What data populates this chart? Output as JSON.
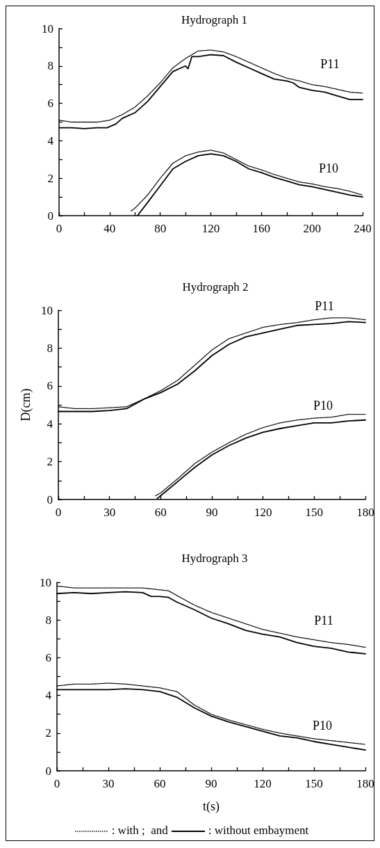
{
  "chart_data": [
    {
      "type": "line",
      "title": "Hydrograph 1",
      "xlim": [
        0,
        240
      ],
      "ylim": [
        0,
        10
      ],
      "xticks": [
        0,
        {
          "value": 20,
          "label": null
        },
        40,
        {
          "value": 60,
          "label": null
        },
        80,
        {
          "value": 100,
          "label": null
        },
        120,
        {
          "value": 140,
          "label": null
        },
        160,
        {
          "value": 180,
          "label": null
        },
        200,
        {
          "value": 220,
          "label": null
        },
        240
      ],
      "yticks": [
        0,
        {
          "value": 1,
          "label": null
        },
        2,
        {
          "value": 3,
          "label": null
        },
        4,
        {
          "value": 5,
          "label": null
        },
        6,
        {
          "value": 7,
          "label": null
        },
        8,
        {
          "value": 9,
          "label": null
        },
        10
      ],
      "grid": false,
      "marker": "none",
      "annotations": [
        "P11",
        "P10"
      ],
      "series": [
        {
          "color": "#000000",
          "line_style": "dotted",
          "x": [
            0,
            10,
            20,
            30,
            40,
            50,
            60,
            70,
            80,
            90,
            100,
            110,
            120,
            130,
            140,
            150,
            160,
            170,
            180,
            190,
            200,
            210,
            220,
            230,
            240
          ],
          "values": [
            5.1,
            5.0,
            5.0,
            5.0,
            5.1,
            5.4,
            5.8,
            6.4,
            7.1,
            7.9,
            8.4,
            8.8,
            8.85,
            8.75,
            8.5,
            8.2,
            7.9,
            7.6,
            7.35,
            7.2,
            7.0,
            6.9,
            6.75,
            6.6,
            6.55
          ]
        },
        {
          "color": "#000000",
          "line_style": "solid",
          "x": [
            0,
            10,
            20,
            30,
            38,
            45,
            50,
            60,
            70,
            80,
            90,
            100,
            102,
            105,
            110,
            120,
            130,
            140,
            150,
            160,
            170,
            180,
            185,
            190,
            200,
            210,
            220,
            230,
            240
          ],
          "values": [
            4.7,
            4.7,
            4.65,
            4.7,
            4.7,
            4.9,
            5.2,
            5.5,
            6.1,
            6.9,
            7.7,
            8.0,
            7.85,
            8.5,
            8.5,
            8.6,
            8.55,
            8.2,
            7.9,
            7.6,
            7.3,
            7.2,
            7.1,
            6.85,
            6.7,
            6.6,
            6.4,
            6.2,
            6.2
          ]
        },
        {
          "color": "#000000",
          "line_style": "dotted",
          "x": [
            57,
            60,
            70,
            80,
            90,
            100,
            110,
            120,
            130,
            140,
            150,
            160,
            170,
            180,
            190,
            200,
            210,
            220,
            230,
            240
          ],
          "values": [
            0.25,
            0.4,
            1.1,
            2.0,
            2.8,
            3.2,
            3.4,
            3.5,
            3.35,
            3.0,
            2.65,
            2.45,
            2.2,
            2.0,
            1.8,
            1.7,
            1.55,
            1.45,
            1.3,
            1.1
          ]
        },
        {
          "color": "#000000",
          "line_style": "solid",
          "x": [
            62,
            70,
            80,
            90,
            100,
            110,
            120,
            130,
            140,
            150,
            160,
            170,
            180,
            190,
            200,
            210,
            220,
            230,
            240
          ],
          "values": [
            0,
            0.7,
            1.6,
            2.5,
            2.9,
            3.2,
            3.3,
            3.2,
            2.9,
            2.5,
            2.3,
            2.05,
            1.85,
            1.65,
            1.55,
            1.4,
            1.25,
            1.1,
            1.0
          ]
        }
      ]
    },
    {
      "type": "line",
      "title": "Hydrograph 2",
      "ylabel": "D(cm)",
      "xlim": [
        0,
        180
      ],
      "ylim": [
        0,
        10
      ],
      "xticks": [
        0,
        {
          "value": 15,
          "label": null
        },
        30,
        {
          "value": 45,
          "label": null
        },
        60,
        {
          "value": 75,
          "label": null
        },
        90,
        {
          "value": 105,
          "label": null
        },
        120,
        {
          "value": 135,
          "label": null
        },
        150,
        {
          "value": 165,
          "label": null
        },
        180
      ],
      "yticks": [
        0,
        {
          "value": 1,
          "label": null
        },
        2,
        {
          "value": 3,
          "label": null
        },
        4,
        {
          "value": 5,
          "label": null
        },
        6,
        {
          "value": 7,
          "label": null
        },
        8,
        {
          "value": 9,
          "label": null
        },
        10
      ],
      "grid": false,
      "marker": "none",
      "annotations": [
        "P11",
        "P10"
      ],
      "series": [
        {
          "color": "#000000",
          "line_style": "dotted",
          "x": [
            0,
            10,
            20,
            30,
            40,
            50,
            60,
            70,
            80,
            90,
            100,
            110,
            120,
            130,
            140,
            150,
            160,
            170,
            180
          ],
          "values": [
            4.9,
            4.8,
            4.8,
            4.85,
            4.9,
            5.3,
            5.75,
            6.3,
            7.1,
            7.9,
            8.5,
            8.8,
            9.1,
            9.25,
            9.35,
            9.5,
            9.6,
            9.6,
            9.5
          ]
        },
        {
          "color": "#000000",
          "line_style": "solid",
          "x": [
            0,
            10,
            20,
            30,
            40,
            50,
            60,
            70,
            80,
            90,
            100,
            110,
            120,
            130,
            140,
            150,
            160,
            170,
            180
          ],
          "values": [
            4.65,
            4.65,
            4.65,
            4.7,
            4.8,
            5.3,
            5.65,
            6.1,
            6.8,
            7.6,
            8.2,
            8.6,
            8.8,
            9.0,
            9.2,
            9.25,
            9.3,
            9.4,
            9.35
          ]
        },
        {
          "color": "#000000",
          "line_style": "dotted",
          "x": [
            57,
            60,
            70,
            80,
            90,
            100,
            110,
            120,
            130,
            140,
            150,
            160,
            170,
            180
          ],
          "values": [
            0.2,
            0.35,
            1.1,
            1.9,
            2.5,
            3.0,
            3.45,
            3.8,
            4.05,
            4.2,
            4.3,
            4.35,
            4.5,
            4.5
          ]
        },
        {
          "color": "#000000",
          "line_style": "solid",
          "x": [
            58,
            60,
            70,
            80,
            90,
            100,
            110,
            120,
            130,
            140,
            150,
            160,
            170,
            180
          ],
          "values": [
            0.05,
            0.2,
            0.95,
            1.7,
            2.35,
            2.85,
            3.25,
            3.55,
            3.75,
            3.9,
            4.05,
            4.05,
            4.15,
            4.2
          ]
        }
      ]
    },
    {
      "type": "line",
      "title": "Hydrograph 3",
      "xlabel": "t(s)",
      "xlim": [
        0,
        180
      ],
      "ylim": [
        0,
        10
      ],
      "xticks": [
        0,
        {
          "value": 15,
          "label": null
        },
        30,
        {
          "value": 45,
          "label": null
        },
        60,
        {
          "value": 75,
          "label": null
        },
        90,
        {
          "value": 105,
          "label": null
        },
        120,
        {
          "value": 135,
          "label": null
        },
        150,
        {
          "value": 165,
          "label": null
        },
        180
      ],
      "yticks": [
        0,
        {
          "value": 1,
          "label": null
        },
        2,
        {
          "value": 3,
          "label": null
        },
        4,
        {
          "value": 5,
          "label": null
        },
        6,
        {
          "value": 7,
          "label": null
        },
        8,
        {
          "value": 9,
          "label": null
        },
        10
      ],
      "grid": false,
      "marker": "none",
      "annotations": [
        "P11",
        "P10",
        ": with ;  and",
        ": without embayment"
      ],
      "series": [
        {
          "color": "#000000",
          "line_style": "dotted",
          "x": [
            0,
            10,
            20,
            30,
            40,
            50,
            60,
            65,
            70,
            80,
            90,
            100,
            110,
            120,
            130,
            140,
            150,
            160,
            170,
            180
          ],
          "values": [
            9.8,
            9.7,
            9.7,
            9.7,
            9.7,
            9.7,
            9.6,
            9.55,
            9.3,
            8.8,
            8.4,
            8.1,
            7.8,
            7.5,
            7.3,
            7.1,
            6.95,
            6.8,
            6.7,
            6.55
          ]
        },
        {
          "color": "#000000",
          "line_style": "solid",
          "x": [
            0,
            10,
            20,
            30,
            40,
            50,
            55,
            60,
            65,
            70,
            80,
            90,
            100,
            110,
            120,
            130,
            140,
            150,
            160,
            170,
            180
          ],
          "values": [
            9.4,
            9.45,
            9.4,
            9.45,
            9.5,
            9.45,
            9.25,
            9.25,
            9.2,
            8.95,
            8.55,
            8.1,
            7.8,
            7.45,
            7.25,
            7.1,
            6.8,
            6.6,
            6.5,
            6.3,
            6.2
          ]
        },
        {
          "color": "#000000",
          "line_style": "dotted",
          "x": [
            0,
            10,
            20,
            30,
            40,
            50,
            60,
            70,
            80,
            90,
            100,
            110,
            120,
            130,
            140,
            150,
            160,
            170,
            180
          ],
          "values": [
            4.5,
            4.6,
            4.6,
            4.65,
            4.6,
            4.5,
            4.4,
            4.2,
            3.5,
            3.0,
            2.7,
            2.45,
            2.2,
            2.0,
            1.85,
            1.7,
            1.6,
            1.5,
            1.4
          ]
        },
        {
          "color": "#000000",
          "line_style": "solid",
          "x": [
            0,
            10,
            20,
            30,
            40,
            50,
            60,
            70,
            80,
            90,
            100,
            110,
            120,
            130,
            140,
            150,
            160,
            170,
            180
          ],
          "values": [
            4.3,
            4.3,
            4.3,
            4.3,
            4.35,
            4.3,
            4.2,
            3.9,
            3.35,
            2.9,
            2.6,
            2.35,
            2.1,
            1.85,
            1.75,
            1.55,
            1.4,
            1.25,
            1.1
          ]
        }
      ]
    }
  ]
}
